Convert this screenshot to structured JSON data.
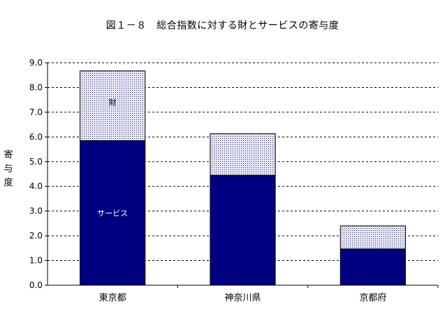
{
  "chart_data": {
    "type": "bar",
    "stacked": true,
    "title": "図１－８　総合指数に対する財とサービスの寄与度",
    "ylabel": "寄与度",
    "xlabel": "",
    "categories": [
      "東京都",
      "神奈川県",
      "京都府"
    ],
    "series": [
      {
        "name": "サービス",
        "values": [
          5.85,
          4.45,
          1.47
        ],
        "color": "#000080",
        "pattern": "solid"
      },
      {
        "name": "財",
        "values": [
          2.82,
          1.68,
          0.93
        ],
        "color": "#d9d9ee",
        "pattern": "dotted"
      }
    ],
    "ylim": [
      0,
      9
    ],
    "yticks": [
      "0.0",
      "1.0",
      "2.0",
      "3.0",
      "4.0",
      "5.0",
      "6.0",
      "7.0",
      "8.0",
      "9.0"
    ],
    "grid": true,
    "legend": "none"
  }
}
